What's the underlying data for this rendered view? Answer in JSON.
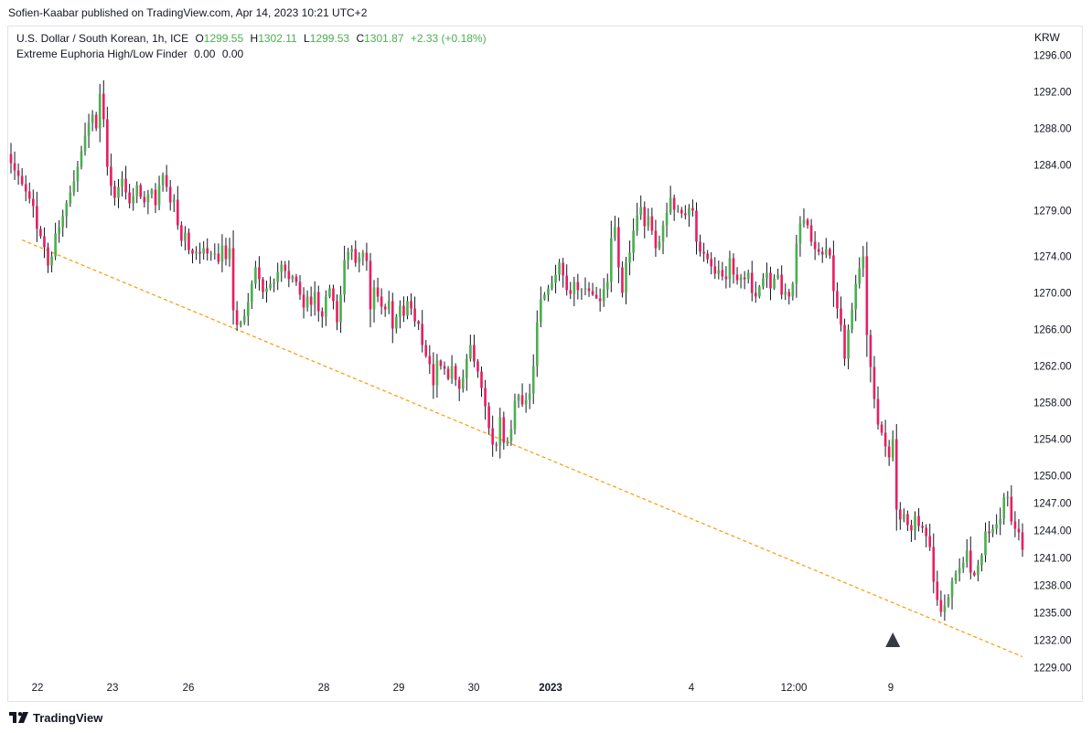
{
  "header": {
    "publisher_line": "Sofien-Kaabar published on TradingView.com, Apr 14, 2023 10:21 UTC+2"
  },
  "legend": {
    "symbol": "U.S. Dollar / South Korean, 1h, ICE",
    "o_label": "O",
    "o_value": "1299.55",
    "h_label": "H",
    "h_value": "1302.11",
    "l_label": "L",
    "l_value": "1299.53",
    "c_label": "C",
    "c_value": "1301.87",
    "change": "+2.33 (+0.18%)",
    "indicator_name": "Extreme Euphoria High/Low Finder",
    "indicator_value1": "0.00",
    "indicator_value2": "0.00"
  },
  "footer": {
    "brand": "TradingView"
  },
  "colors": {
    "up": "#4caf50",
    "down": "#e91e63",
    "trendline": "#ff9800",
    "signal": "#363a45"
  },
  "chart_data": {
    "type": "candlestick",
    "currency": "KRW",
    "ylim": [
      1229,
      1297
    ],
    "y_ticks": [
      "1296.00",
      "1292.00",
      "1288.00",
      "1284.00",
      "1279.00",
      "1274.00",
      "1270.00",
      "1266.00",
      "1262.00",
      "1258.00",
      "1254.00",
      "1250.00",
      "1247.00",
      "1244.00",
      "1241.00",
      "1238.00",
      "1235.00",
      "1232.00",
      "1229.00"
    ],
    "x_ticks": [
      {
        "label": "22",
        "bold": false
      },
      {
        "label": "23",
        "bold": false
      },
      {
        "label": "26",
        "bold": false
      },
      {
        "label": "28",
        "bold": false
      },
      {
        "label": "29",
        "bold": false
      },
      {
        "label": "30",
        "bold": false
      },
      {
        "label": "2023",
        "bold": true
      },
      {
        "label": "4",
        "bold": false
      },
      {
        "label": "12:00",
        "bold": false
      },
      {
        "label": "9",
        "bold": false
      }
    ],
    "closes": [
      1284.2,
      1283.4,
      1282.8,
      1281.9,
      1281.1,
      1280.3,
      1279.5,
      1277.0,
      1276.2,
      1275.0,
      1273.0,
      1274.0,
      1276.5,
      1277.2,
      1278.4,
      1279.8,
      1281.0,
      1282.2,
      1283.8,
      1285.5,
      1287.2,
      1288.6,
      1289.5,
      1288.0,
      1291.8,
      1289.0,
      1283.8,
      1281.7,
      1280.4,
      1281.6,
      1282.5,
      1281.0,
      1279.8,
      1280.6,
      1281.8,
      1280.5,
      1279.9,
      1280.8,
      1281.3,
      1279.6,
      1281.8,
      1282.9,
      1281.6,
      1279.9,
      1280.2,
      1277.4,
      1275.7,
      1276.6,
      1274.7,
      1274.3,
      1274.5,
      1274.3,
      1274.9,
      1274.3,
      1274.3,
      1274.3,
      1273.4,
      1275.2,
      1273.7,
      1274.9,
      1268.1,
      1266.5,
      1266.8,
      1267.5,
      1269.0,
      1271.0,
      1272.8,
      1271.5,
      1270.1,
      1270.5,
      1271.0,
      1271.2,
      1272.3,
      1273.1,
      1272.4,
      1271.5,
      1271.8,
      1271.2,
      1269.8,
      1268.4,
      1269.6,
      1268.7,
      1270.1,
      1268.0,
      1267.4,
      1269.6,
      1270.5,
      1269.1,
      1266.8,
      1269.8,
      1273.6,
      1274.5,
      1274.8,
      1273.3,
      1273.9,
      1274.4,
      1273.5,
      1268.2,
      1270.6,
      1269.6,
      1268.5,
      1268.2,
      1269.1,
      1266.1,
      1267.4,
      1268.6,
      1267.5,
      1269.1,
      1268.3,
      1266.9,
      1266.6,
      1264.3,
      1263.1,
      1262.2,
      1259.9,
      1262.6,
      1262.0,
      1261.7,
      1260.6,
      1262.0,
      1260.5,
      1259.5,
      1260.7,
      1262.8,
      1264.3,
      1262.5,
      1261.4,
      1259.6,
      1257.6,
      1255.2,
      1253.4,
      1253.3,
      1256.4,
      1253.6,
      1253.8,
      1255.1,
      1258.2,
      1258.8,
      1257.8,
      1258.3,
      1259.0,
      1262.0,
      1266.8,
      1269.3,
      1269.8,
      1270.5,
      1271.1,
      1272.0,
      1273.3,
      1271.9,
      1270.3,
      1269.9,
      1271.2,
      1270.3,
      1270.4,
      1270.5,
      1270.2,
      1269.8,
      1269.4,
      1269.1,
      1270.4,
      1271.2,
      1276.0,
      1277.2,
      1272.8,
      1270.0,
      1273.3,
      1274.4,
      1276.8,
      1278.5,
      1279.4,
      1277.3,
      1278.4,
      1276.8,
      1274.9,
      1275.6,
      1277.4,
      1278.8,
      1280.4,
      1279.1,
      1279.1,
      1278.7,
      1278.5,
      1279.3,
      1279.0,
      1275.6,
      1274.5,
      1274.3,
      1273.7,
      1272.9,
      1272.1,
      1272.5,
      1271.8,
      1271.5,
      1273.8,
      1272.0,
      1271.4,
      1271.7,
      1271.5,
      1272.2,
      1270.0,
      1269.6,
      1270.7,
      1271.6,
      1272.2,
      1270.5,
      1271.6,
      1272.0,
      1269.8,
      1270.1,
      1269.6,
      1271.0,
      1275.4,
      1277.6,
      1278.0,
      1277.4,
      1275.6,
      1274.8,
      1274.5,
      1274.2,
      1274.8,
      1274.1,
      1270.2,
      1268.3,
      1266.5,
      1262.8,
      1266.0,
      1268.2,
      1271.0,
      1272.7,
      1274.0,
      1265.4,
      1261.9,
      1258.4,
      1255.6,
      1254.7,
      1253.2,
      1252.0,
      1254.0,
      1246.3,
      1245.2,
      1245.8,
      1244.6,
      1244.0,
      1245.6,
      1244.5,
      1244.3,
      1243.4,
      1242.2,
      1238.4,
      1236.4,
      1235.1,
      1235.8,
      1236.7,
      1238.5,
      1239.3,
      1239.9,
      1240.5,
      1241.8,
      1239.4,
      1239.1,
      1240.2,
      1241.3,
      1243.9,
      1243.7,
      1244.2,
      1244.7,
      1245.3,
      1247.6,
      1247.7,
      1245.0,
      1244.2,
      1243.8,
      1241.9
    ]
  },
  "annotation": {
    "trendline": {
      "from": 1275.8,
      "to": 1230.2
    },
    "signal_candle": 238
  }
}
